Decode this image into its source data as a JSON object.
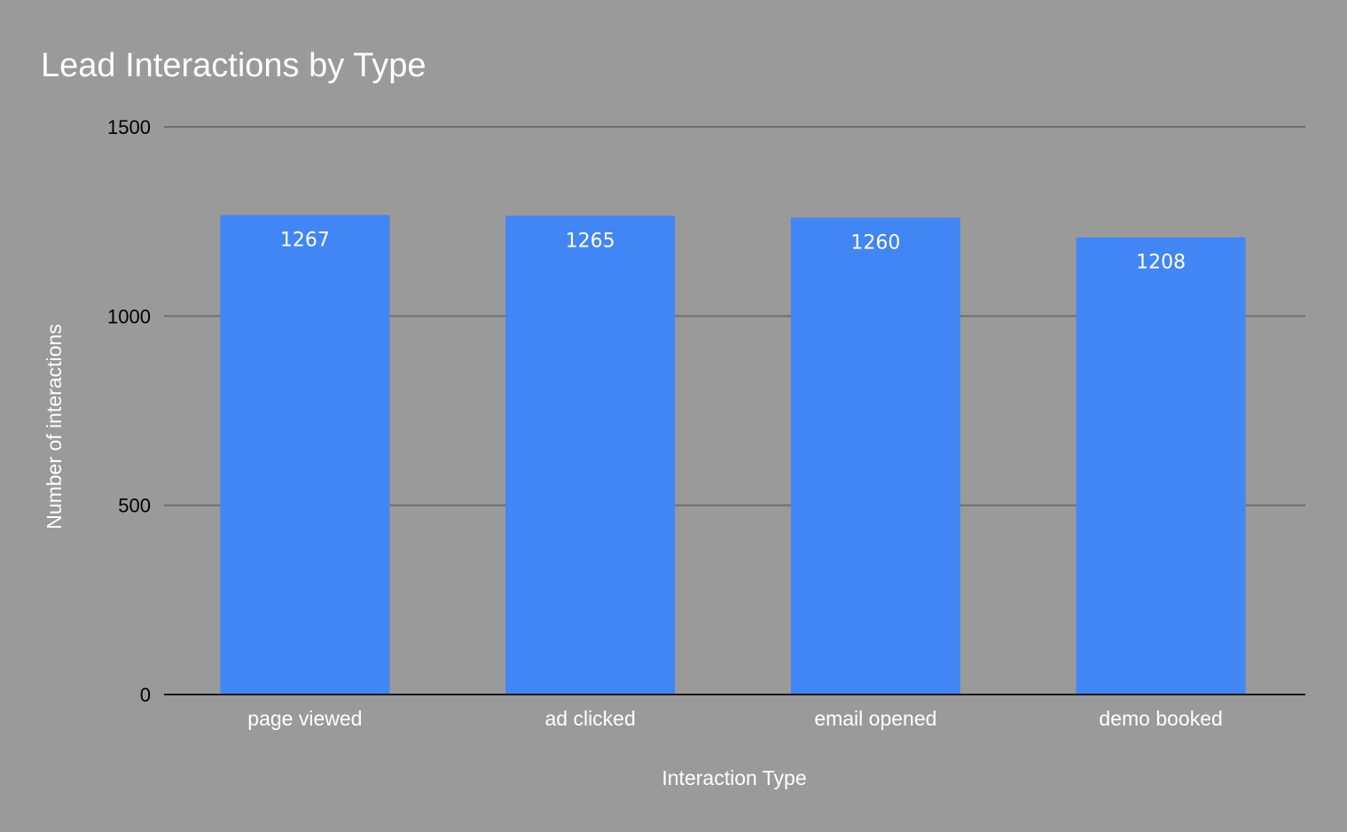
{
  "chart_data": {
    "type": "bar",
    "title": "Lead Interactions by Type",
    "xlabel": "Interaction Type",
    "ylabel": "Number of interactions",
    "categories": [
      "page viewed",
      "ad clicked",
      "email opened",
      "demo booked"
    ],
    "values": [
      1267,
      1265,
      1260,
      1208
    ],
    "data_labels": [
      "1267",
      "1265",
      "1260",
      "1208"
    ],
    "ylim": [
      0,
      1500
    ],
    "yticks": [
      0,
      500,
      1000,
      1500
    ],
    "ytick_labels": [
      "0",
      "500",
      "1000",
      "1500"
    ],
    "grid": true,
    "legend": "none",
    "colors": {
      "background": "#9a9a9a",
      "bar": "#4285f4",
      "gridline": "#6e6e6e",
      "baseline": "#1a1a1a"
    }
  }
}
